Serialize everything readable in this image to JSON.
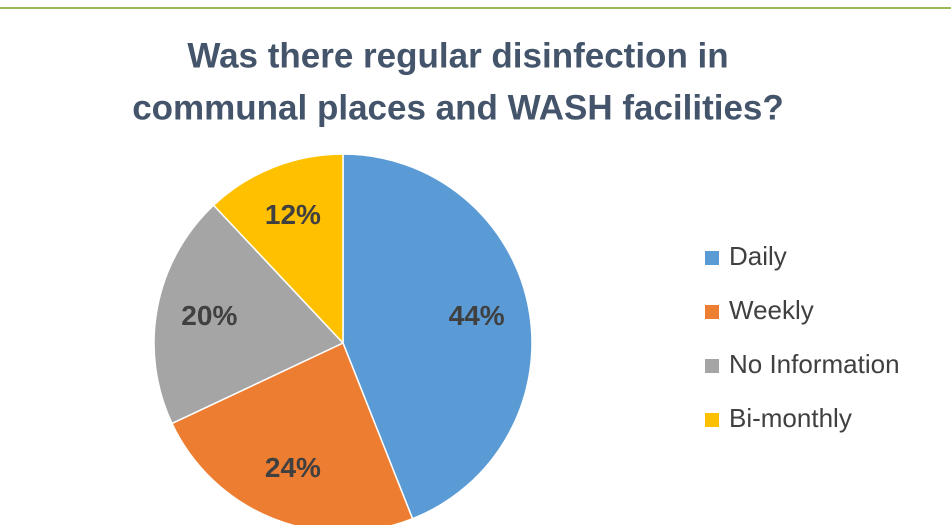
{
  "chart_data": {
    "type": "pie",
    "title": [
      "Was there regular disinfection in",
      "communal places and WASH facilities?"
    ],
    "categories": [
      "Daily",
      "Weekly",
      "No Information",
      "Bi-monthly"
    ],
    "values": [
      44,
      24,
      20,
      12
    ],
    "value_labels": [
      "44%",
      "24%",
      "20%",
      "12%"
    ],
    "colors": [
      "#5b9bd5",
      "#ed7d31",
      "#a5a5a5",
      "#ffc000"
    ],
    "legend": "right"
  }
}
